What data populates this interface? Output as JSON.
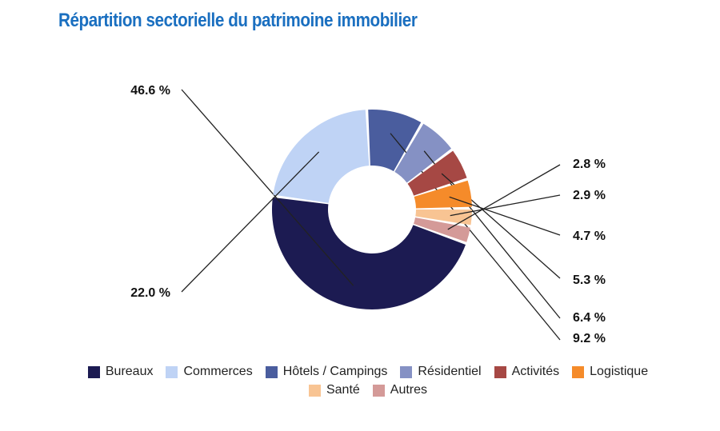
{
  "title": "Répartition sectorielle du patrimoine immobilier",
  "chart_data": {
    "type": "pie",
    "donut": true,
    "title": "Répartition sectorielle du patrimoine immobilier",
    "slices": [
      {
        "name": "Bureaux",
        "value": 46.6,
        "label": "46.6 %",
        "color": "#1c1b52"
      },
      {
        "name": "Commerces",
        "value": 22.0,
        "label": "22.0 %",
        "color": "#bfd3f5"
      },
      {
        "name": "Hôtels / Campings",
        "value": 9.2,
        "label": "9.2 %",
        "color": "#4a5d9e"
      },
      {
        "name": "Résidentiel",
        "value": 6.4,
        "label": "6.4 %",
        "color": "#8591c4"
      },
      {
        "name": "Activités",
        "value": 5.3,
        "label": "5.3 %",
        "color": "#a64844"
      },
      {
        "name": "Logistique",
        "value": 4.7,
        "label": "4.7 %",
        "color": "#f58b2a"
      },
      {
        "name": "Santé",
        "value": 2.9,
        "label": "2.9 %",
        "color": "#f8c493"
      },
      {
        "name": "Autres",
        "value": 2.8,
        "label": "2.8 %",
        "color": "#d49a98"
      }
    ],
    "legend_position": "bottom"
  }
}
